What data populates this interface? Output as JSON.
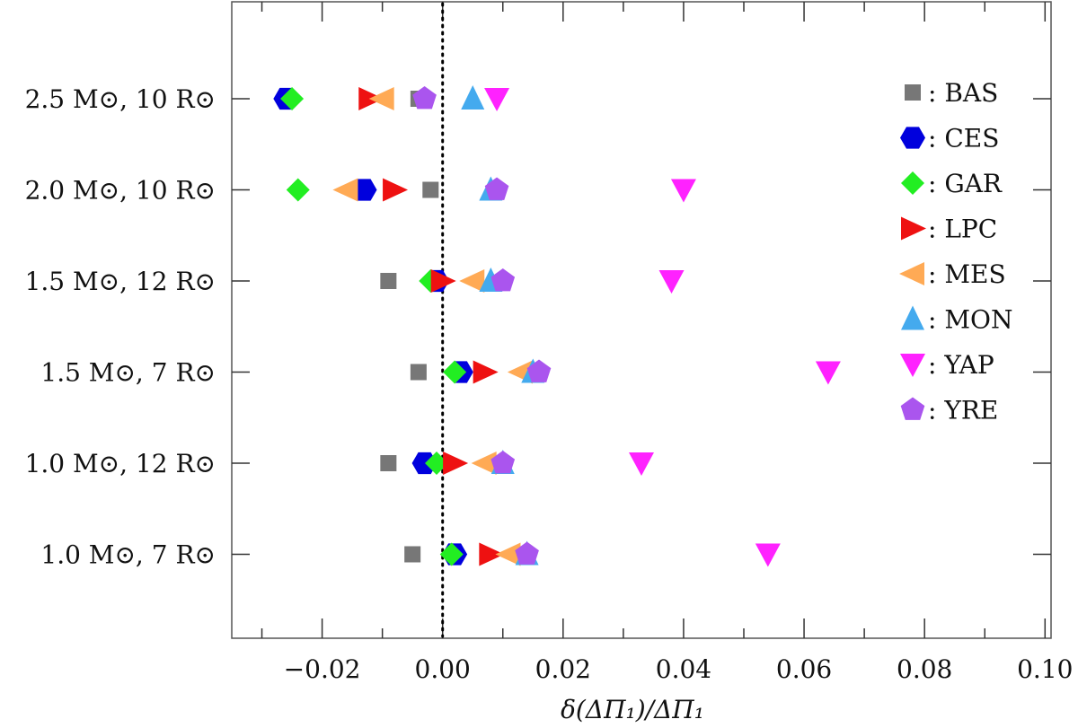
{
  "chart_data": {
    "type": "scatter",
    "title": "",
    "xlabel": "δ(ΔΠ₁)/ΔΠ₁",
    "ylabel": "",
    "xlim": [
      -0.035,
      0.101
    ],
    "x_ticks": [
      -0.02,
      0.0,
      0.02,
      0.04,
      0.06,
      0.08,
      0.1
    ],
    "x_tick_labels": [
      "−0.02",
      "0.00",
      "0.02",
      "0.04",
      "0.06",
      "0.08",
      "0.10"
    ],
    "reference_line": {
      "x": 0.0,
      "style": "dotted"
    },
    "legend_position": "top-right",
    "categories": [
      "2.5 M⊙, 10 R⊙",
      "2.0 M⊙, 10 R⊙",
      "1.5 M⊙, 12 R⊙",
      "1.5 M⊙,  7 R⊙",
      "1.0 M⊙, 12 R⊙",
      "1.0 M⊙,  7 R⊙"
    ],
    "series": [
      {
        "name": "BAS",
        "label": ": BAS",
        "marker": "square",
        "color": "#777777",
        "values": [
          -0.004,
          -0.002,
          -0.009,
          -0.004,
          -0.009,
          -0.005
        ]
      },
      {
        "name": "CES",
        "label": ": CES",
        "marker": "hexagon",
        "color": "#0000dd",
        "values": [
          -0.026,
          -0.013,
          -0.001,
          0.003,
          -0.003,
          0.002
        ]
      },
      {
        "name": "GAR",
        "label": ": GAR",
        "marker": "diamond",
        "color": "#22ee22",
        "values": [
          -0.025,
          -0.024,
          -0.002,
          0.002,
          -0.001,
          0.0015
        ]
      },
      {
        "name": "LPC",
        "label": ": LPC",
        "marker": "triangle-right",
        "color": "#ee1111",
        "values": [
          -0.012,
          -0.008,
          0.0,
          0.007,
          0.002,
          0.008
        ]
      },
      {
        "name": "MES",
        "label": ": MES",
        "marker": "triangle-left",
        "color": "#ffaa55",
        "values": [
          -0.01,
          -0.016,
          0.005,
          0.013,
          0.007,
          0.011
        ]
      },
      {
        "name": "MON",
        "label": ": MON",
        "marker": "triangle-up",
        "color": "#44aaee",
        "values": [
          0.005,
          0.008,
          0.008,
          0.015,
          0.01,
          0.014
        ]
      },
      {
        "name": "YAP",
        "label": ": YAP",
        "marker": "triangle-down",
        "color": "#ff22ff",
        "values": [
          0.009,
          0.04,
          0.038,
          0.064,
          0.033,
          0.054
        ]
      },
      {
        "name": "YRE",
        "label": ": YRE",
        "marker": "pentagon",
        "color": "#aa55ee",
        "values": [
          -0.003,
          0.009,
          0.01,
          0.016,
          0.01,
          0.014
        ]
      }
    ]
  }
}
